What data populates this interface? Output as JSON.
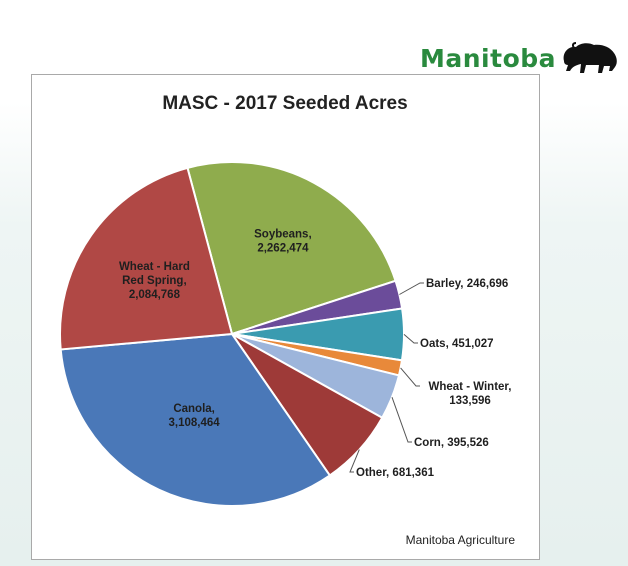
{
  "logo": {
    "text": "Manitoba",
    "icon": "bison-icon",
    "color": "#2a8a3e"
  },
  "source": "Manitoba Agriculture",
  "chart_data": {
    "type": "pie",
    "title": "MASC - 2017 Seeded Acres",
    "slices": [
      {
        "name": "Soybeans",
        "value": 2262474,
        "value_label": "2,262,474",
        "color": "#8fac4d",
        "label_lines": [
          "Soybeans,",
          "2,262,474"
        ]
      },
      {
        "name": "Barley",
        "value": 246696,
        "value_label": "246,696",
        "color": "#6b4c9a",
        "label_lines": [
          "Barley, 246,696"
        ]
      },
      {
        "name": "Oats",
        "value": 451027,
        "value_label": "451,027",
        "color": "#3a9bb0",
        "label_lines": [
          "Oats, 451,027"
        ]
      },
      {
        "name": "Wheat - Winter",
        "value": 133596,
        "value_label": "133,596",
        "color": "#e8893a",
        "label_lines": [
          "Wheat - Winter,",
          "133,596"
        ]
      },
      {
        "name": "Corn",
        "value": 395526,
        "value_label": "395,526",
        "color": "#9db5db",
        "label_lines": [
          "Corn, 395,526"
        ]
      },
      {
        "name": "Other",
        "value": 681361,
        "value_label": "681,361",
        "color": "#9e3a38",
        "label_lines": [
          "Other, 681,361"
        ]
      },
      {
        "name": "Canola",
        "value": 3108464,
        "value_label": "3,108,464",
        "color": "#4a78b8",
        "label_lines": [
          "Canola,",
          "3,108,464"
        ]
      },
      {
        "name": "Wheat - Hard Red Spring",
        "value": 2084768,
        "value_label": "2,084,768",
        "color": "#b04845",
        "label_lines": [
          "Wheat - Hard",
          "Red Spring,",
          "2,084,768"
        ]
      }
    ]
  }
}
